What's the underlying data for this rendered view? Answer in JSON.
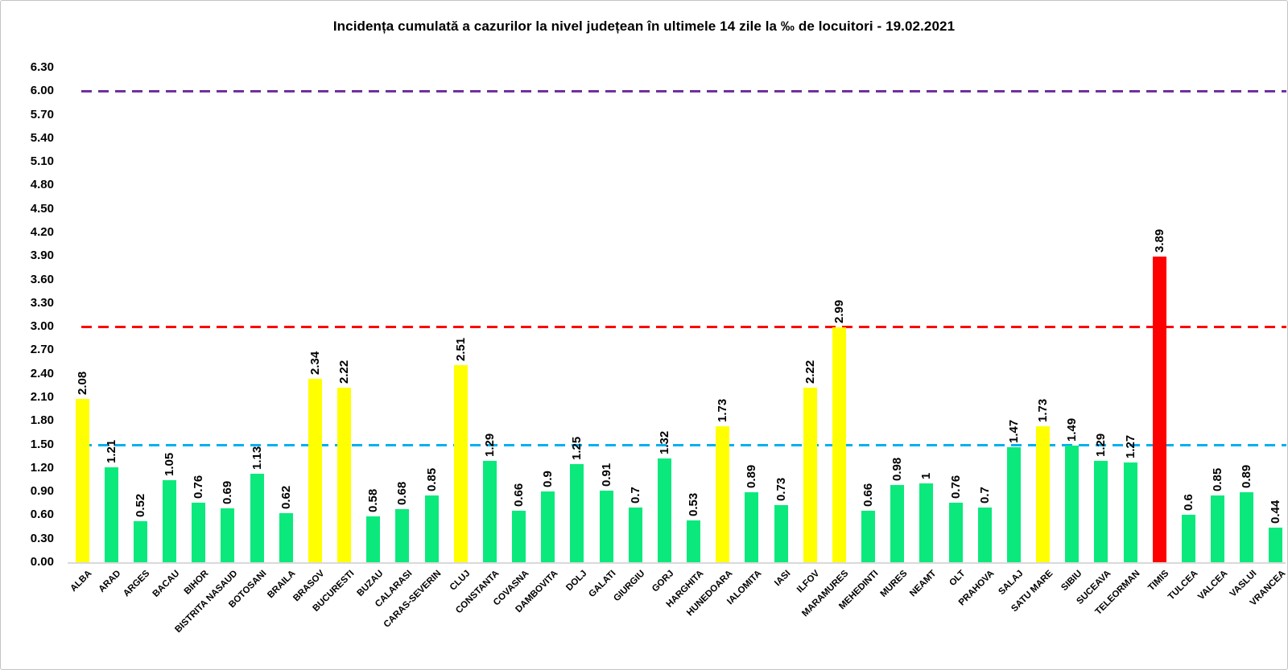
{
  "title": "Incidența cumulată a cazurilor la nivel județean în ultimele 14 zile la ‰ de locuitori - 19.02.2021",
  "chart_data": {
    "type": "bar",
    "title": "Incidența cumulată a cazurilor la nivel județean în ultimele 14 zile la ‰ de locuitori - 19.02.2021",
    "xlabel": "",
    "ylabel": "",
    "ylim": [
      0,
      6.3
    ],
    "ytick_step": 0.3,
    "grid": false,
    "legend": false,
    "bar_color_meaning": {
      "green": "below 1.5",
      "yellow": "between 1.5 and 3",
      "red": "above 3"
    },
    "palette": {
      "green": "#0CE97C",
      "yellow": "#FFFF00",
      "red": "#FF0000"
    },
    "threshold_lines": [
      {
        "value": 1.5,
        "color": "#00B0F0",
        "style": "dashed"
      },
      {
        "value": 3.0,
        "color": "#FF0000",
        "style": "dashed"
      },
      {
        "value": 6.0,
        "color": "#7030A0",
        "style": "dashed"
      }
    ],
    "points": [
      {
        "name": "ALBA",
        "value": 2.08,
        "label": "2.08",
        "color": "yellow"
      },
      {
        "name": "ARAD",
        "value": 1.21,
        "label": "1.21",
        "color": "green"
      },
      {
        "name": "ARGES",
        "value": 0.52,
        "label": "0.52",
        "color": "green"
      },
      {
        "name": "BACAU",
        "value": 1.05,
        "label": "1.05",
        "color": "green"
      },
      {
        "name": "BIHOR",
        "value": 0.76,
        "label": "0.76",
        "color": "green"
      },
      {
        "name": "BISTRITA NASAUD",
        "value": 0.69,
        "label": "0.69",
        "color": "green"
      },
      {
        "name": "BOTOSANI",
        "value": 1.13,
        "label": "1.13",
        "color": "green"
      },
      {
        "name": "BRAILA",
        "value": 0.62,
        "label": "0.62",
        "color": "green"
      },
      {
        "name": "BRASOV",
        "value": 2.34,
        "label": "2.34",
        "color": "yellow"
      },
      {
        "name": "BUCURESTI",
        "value": 2.22,
        "label": "2.22",
        "color": "yellow"
      },
      {
        "name": "BUZAU",
        "value": 0.58,
        "label": "0.58",
        "color": "green"
      },
      {
        "name": "CALARASI",
        "value": 0.68,
        "label": "0.68",
        "color": "green"
      },
      {
        "name": "CARAS-SEVERIN",
        "value": 0.85,
        "label": "0.85",
        "color": "green"
      },
      {
        "name": "CLUJ",
        "value": 2.51,
        "label": "2.51",
        "color": "yellow"
      },
      {
        "name": "CONSTANTA",
        "value": 1.29,
        "label": "1.29",
        "color": "green"
      },
      {
        "name": "COVASNA",
        "value": 0.66,
        "label": "0.66",
        "color": "green"
      },
      {
        "name": "DAMBOVITA",
        "value": 0.9,
        "label": "0.9",
        "color": "green"
      },
      {
        "name": "DOLJ",
        "value": 1.25,
        "label": "1.25",
        "color": "green"
      },
      {
        "name": "GALATI",
        "value": 0.91,
        "label": "0.91",
        "color": "green"
      },
      {
        "name": "GIURGIU",
        "value": 0.7,
        "label": "0.7",
        "color": "green"
      },
      {
        "name": "GORJ",
        "value": 1.32,
        "label": "1.32",
        "color": "green"
      },
      {
        "name": "HARGHITA",
        "value": 0.53,
        "label": "0.53",
        "color": "green"
      },
      {
        "name": "HUNEDOARA",
        "value": 1.73,
        "label": "1.73",
        "color": "yellow"
      },
      {
        "name": "IALOMITA",
        "value": 0.89,
        "label": "0.89",
        "color": "green"
      },
      {
        "name": "IASI",
        "value": 0.73,
        "label": "0.73",
        "color": "green"
      },
      {
        "name": "ILFOV",
        "value": 2.22,
        "label": "2.22",
        "color": "yellow"
      },
      {
        "name": "MARAMURES",
        "value": 2.99,
        "label": "2.99",
        "color": "yellow"
      },
      {
        "name": "MEHEDINTI",
        "value": 0.66,
        "label": "0.66",
        "color": "green"
      },
      {
        "name": "MURES",
        "value": 0.98,
        "label": "0.98",
        "color": "green"
      },
      {
        "name": "NEAMT",
        "value": 1,
        "label": "1",
        "color": "green"
      },
      {
        "name": "OLT",
        "value": 0.76,
        "label": "0.76",
        "color": "green"
      },
      {
        "name": "PRAHOVA",
        "value": 0.7,
        "label": "0.7",
        "color": "green"
      },
      {
        "name": "SALAJ",
        "value": 1.47,
        "label": "1.47",
        "color": "green"
      },
      {
        "name": "SATU MARE",
        "value": 1.73,
        "label": "1.73",
        "color": "yellow"
      },
      {
        "name": "SIBIU",
        "value": 1.49,
        "label": "1.49",
        "color": "green"
      },
      {
        "name": "SUCEAVA",
        "value": 1.29,
        "label": "1.29",
        "color": "green"
      },
      {
        "name": "TELEORMAN",
        "value": 1.27,
        "label": "1.27",
        "color": "green"
      },
      {
        "name": "TIMIS",
        "value": 3.89,
        "label": "3.89",
        "color": "red"
      },
      {
        "name": "TULCEA",
        "value": 0.6,
        "label": "0.6",
        "color": "green"
      },
      {
        "name": "VALCEA",
        "value": 0.85,
        "label": "0.85",
        "color": "green"
      },
      {
        "name": "VASLUI",
        "value": 0.89,
        "label": "0.89",
        "color": "green"
      },
      {
        "name": "VRANCEA",
        "value": 0.44,
        "label": "0.44",
        "color": "green"
      }
    ]
  }
}
